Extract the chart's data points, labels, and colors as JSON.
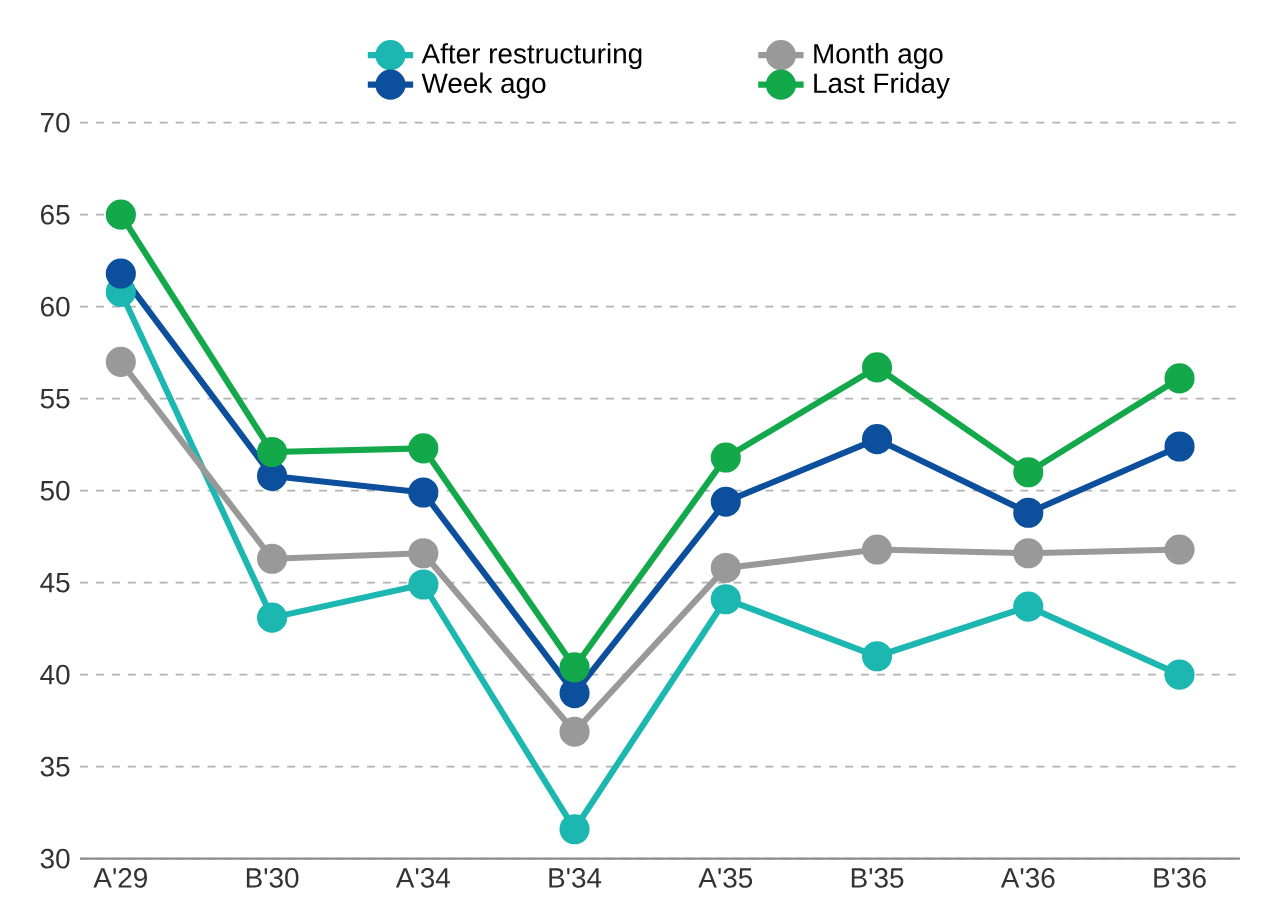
{
  "chart_data": {
    "type": "line",
    "categories": [
      "A'29",
      "B'30",
      "A'34",
      "B'34",
      "A'35",
      "B'35",
      "A'36",
      "B'36"
    ],
    "series": [
      {
        "name": "After restructuring",
        "color": "#1bb7b0",
        "values": [
          60.8,
          43.1,
          44.9,
          31.6,
          44.1,
          41.0,
          43.7,
          40.0
        ]
      },
      {
        "name": "Month ago",
        "color": "#999999",
        "values": [
          57.0,
          46.3,
          46.6,
          36.9,
          45.8,
          46.8,
          46.6,
          46.8
        ]
      },
      {
        "name": "Week ago",
        "color": "#0c4f9c",
        "values": [
          61.8,
          50.8,
          49.9,
          39.0,
          49.4,
          52.8,
          48.8,
          52.4
        ]
      },
      {
        "name": "Last Friday",
        "color": "#13a84a",
        "values": [
          65.0,
          52.1,
          52.3,
          40.4,
          51.8,
          56.7,
          51.0,
          56.1
        ]
      }
    ],
    "ylim": [
      30,
      70
    ],
    "yticks": [
      30,
      35,
      40,
      45,
      50,
      55,
      60,
      65,
      70
    ],
    "grid": "y",
    "legend": "top",
    "marker": "circle",
    "line_style": "solid"
  }
}
